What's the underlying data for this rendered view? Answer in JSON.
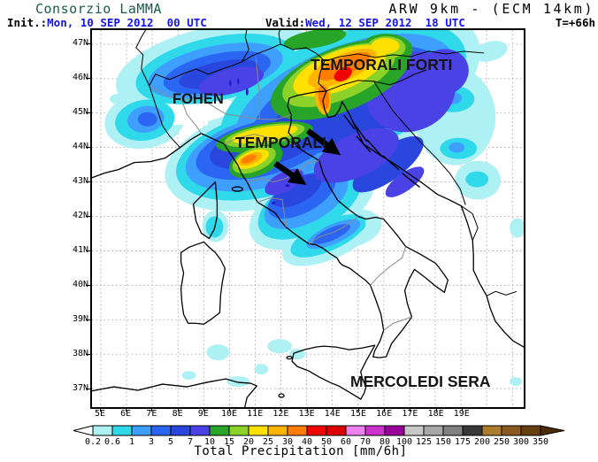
{
  "header": {
    "brand": "Consorzio LaMMA",
    "model_title": "ARW 9km - (ECM 14km)",
    "init_label": "Init.:",
    "init_value": "Mon, 10 SEP 2012  00 UTC",
    "valid_label": "Valid:",
    "valid_value": "Wed, 12 SEP 2012  18 UTC",
    "lead_time": "T=+66h"
  },
  "map": {
    "annotations": {
      "temporali_forti": "TEMPORALI FORTI",
      "fohen": "FOHEN",
      "temporali": "TEMPORALI",
      "mercoledi_sera": "MERCOLEDI SERA"
    },
    "lat_ticks": [
      "47N",
      "46N",
      "45N",
      "44N",
      "43N",
      "42N",
      "41N",
      "40N",
      "39N",
      "38N",
      "37N"
    ],
    "lon_ticks": [
      "5E",
      "6E",
      "7E",
      "8E",
      "9E",
      "10E",
      "11E",
      "12E",
      "13E",
      "14E",
      "15E",
      "16E",
      "17E",
      "18E",
      "19E"
    ]
  },
  "colorbar": {
    "title": "Total Precipitation [mm/6h]",
    "tick_labels": [
      "0.2",
      "0.6",
      "1",
      "3",
      "5",
      "7",
      "10",
      "15",
      "20",
      "25",
      "30",
      "40",
      "50",
      "60",
      "70",
      "80",
      "100",
      "125",
      "150",
      "175",
      "200",
      "250",
      "300",
      "350"
    ],
    "segment_colors": [
      "#aef1f5",
      "#2fd9e9",
      "#3e9fff",
      "#2b66f2",
      "#2946dd",
      "#4b42e6",
      "#28a428",
      "#8cd228",
      "#ffe000",
      "#ffb400",
      "#ff7d00",
      "#f00505",
      "#dc0000",
      "#ee82ee",
      "#cc33cc",
      "#990099",
      "#c8c8c8",
      "#a8a8a8",
      "#808080",
      "#383838",
      "#ad7d2e",
      "#8a5a20",
      "#68400f"
    ],
    "underflow_color": "#ffffff",
    "overflow_color": "#4a2c08"
  },
  "colors": {
    "brand_green": "#1a5c4a",
    "timestamp_blue": "#1414ee",
    "grid_gray": "#9a9a9a"
  }
}
